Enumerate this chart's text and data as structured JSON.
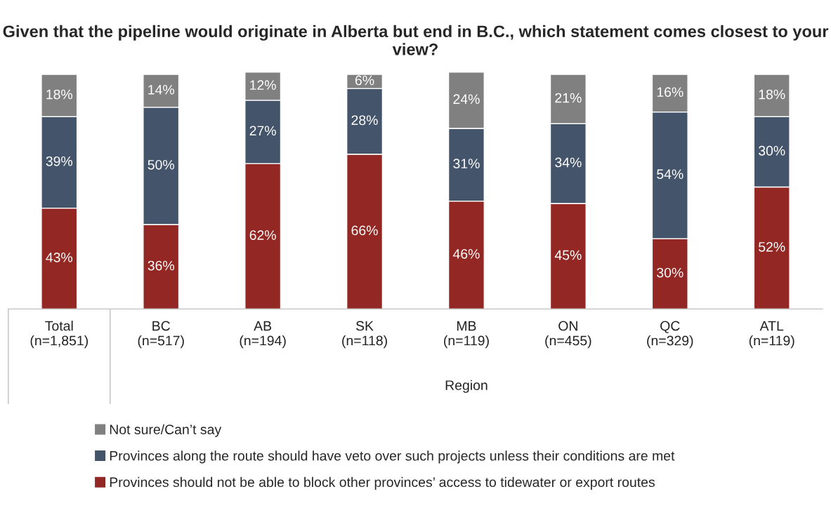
{
  "chart_data": {
    "type": "bar",
    "stacked": true,
    "legend": "bottom",
    "grid": false,
    "title": "Given that the pipeline would originate in Alberta but end in B.C., which statement comes closest to your view?",
    "categories": [
      "Total\n(n=1,851)",
      "BC\n(n=517)",
      "AB\n(n=194)",
      "SK\n(n=118)",
      "MB\n(n=119)",
      "ON\n(n=455)",
      "QC\n(n=329)",
      "ATL\n(n=119)"
    ],
    "annotations": [
      "Region"
    ],
    "series": [
      {
        "name": "Provinces should not be able to block other provinces’ access to tidewater or export routes",
        "color": "#922723",
        "values": [
          43,
          36,
          62,
          66,
          46,
          45,
          30,
          52
        ],
        "value_labels": [
          "43%",
          "36%",
          "62%",
          "66%",
          "46%",
          "45%",
          "30%",
          "52%"
        ]
      },
      {
        "name": "Provinces along the route should have veto over such projects unless their conditions are met",
        "color": "#44546a",
        "values": [
          39,
          50,
          27,
          28,
          31,
          34,
          54,
          30
        ],
        "value_labels": [
          "39%",
          "50%",
          "27%",
          "28%",
          "31%",
          "34%",
          "54%",
          "30%"
        ]
      },
      {
        "name": "Not sure/Can’t say",
        "color": "#808080",
        "values": [
          18,
          14,
          12,
          6,
          24,
          21,
          16,
          18
        ],
        "value_labels": [
          "18%",
          "14%",
          "12%",
          "6%",
          "24%",
          "21%",
          "16%",
          "18%"
        ]
      }
    ]
  }
}
